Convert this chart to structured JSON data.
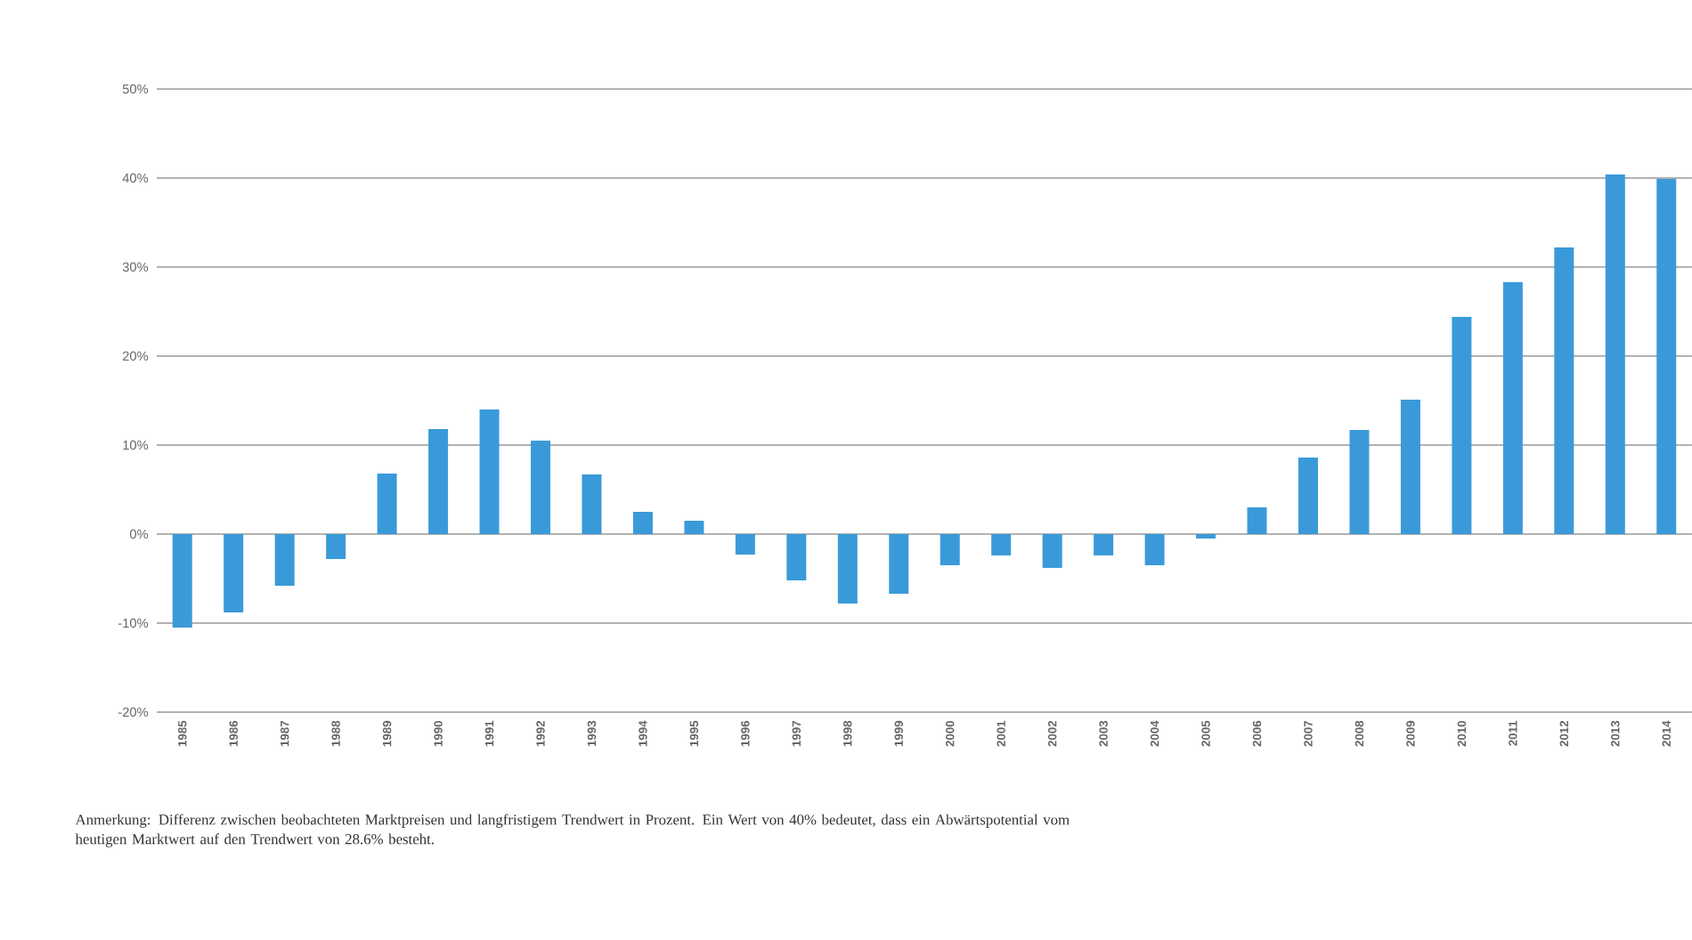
{
  "chart_data": {
    "type": "bar",
    "categories": [
      "1985",
      "1986",
      "1987",
      "1988",
      "1989",
      "1990",
      "1991",
      "1992",
      "1993",
      "1994",
      "1995",
      "1996",
      "1997",
      "1998",
      "1999",
      "2000",
      "2001",
      "2002",
      "2003",
      "2004",
      "2005",
      "2006",
      "2007",
      "2008",
      "2009",
      "2010",
      "2011",
      "2012",
      "2013",
      "2014"
    ],
    "values": [
      -10.5,
      -8.8,
      -5.8,
      -2.8,
      6.8,
      11.8,
      14.0,
      10.5,
      6.7,
      2.5,
      1.5,
      -2.3,
      -5.2,
      -7.8,
      -6.7,
      -3.5,
      -2.4,
      -3.8,
      -2.4,
      -3.5,
      -0.5,
      3.0,
      8.6,
      11.7,
      15.1,
      24.4,
      28.3,
      32.2,
      40.4,
      39.9
    ],
    "color": "#3a9ad9",
    "ylim": [
      -20,
      50
    ],
    "yticks": [
      {
        "value": -20,
        "label": "-20%"
      },
      {
        "value": -10,
        "label": "-10%"
      },
      {
        "value": 0,
        "label": "0%"
      },
      {
        "value": 10,
        "label": "10%"
      },
      {
        "value": 20,
        "label": "20%"
      },
      {
        "value": 30,
        "label": "30%"
      },
      {
        "value": 40,
        "label": "40%"
      },
      {
        "value": 50,
        "label": "50%"
      }
    ],
    "grid": "y",
    "annotations": [
      "Anmerkung: Differenz zwischen beobachteten Marktpreisen und langfristigem Trendwert in Prozent. Ein Wert von 40% bedeutet, dass ein Abwärtspotential vom heutigen Marktwert auf den Trendwert von 28.6% besteht."
    ]
  }
}
